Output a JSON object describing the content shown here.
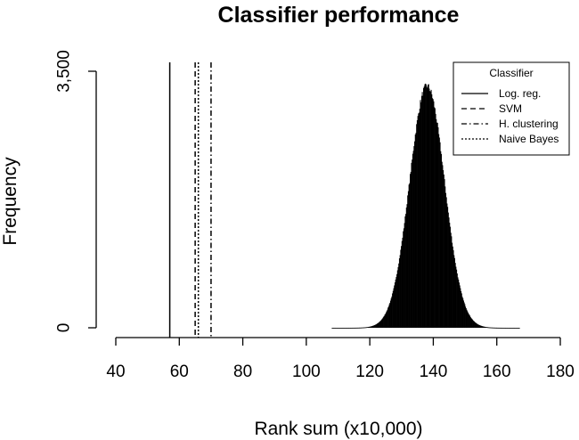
{
  "chart_data": {
    "type": "histogram",
    "title": "Classifier performance",
    "xlabel": "Rank sum (x10,000)",
    "ylabel": "Frequency",
    "xlim": [
      40,
      180
    ],
    "ylim": [
      0,
      3500
    ],
    "x_ticks": [
      {
        "value": 40,
        "label": "40"
      },
      {
        "value": 60,
        "label": "60"
      },
      {
        "value": 80,
        "label": "80"
      },
      {
        "value": 100,
        "label": "100"
      },
      {
        "value": 120,
        "label": "120"
      },
      {
        "value": 140,
        "label": "140"
      },
      {
        "value": 160,
        "label": "160"
      },
      {
        "value": 180,
        "label": "180"
      }
    ],
    "y_ticks": [
      {
        "value": 0,
        "label": "0"
      },
      {
        "value": 3500,
        "label": "3,500"
      }
    ],
    "distribution": {
      "color": "#000000",
      "mean": 138,
      "sd": 5.5,
      "peak": 3300,
      "range": [
        108,
        167
      ]
    },
    "reference_lines": [
      {
        "label": "Log. reg.",
        "x": 57,
        "dash": "solid"
      },
      {
        "label": "SVM",
        "x": 65,
        "dash": "dashed"
      },
      {
        "label": "H. clustering",
        "x": 70,
        "dash": "dashdot"
      },
      {
        "label": "Naive Bayes",
        "x": 66,
        "dash": "dotted"
      }
    ],
    "legend": {
      "title": "Classifier",
      "position": "top-right",
      "entries": [
        {
          "label": "Log. reg.",
          "dash": "solid"
        },
        {
          "label": "SVM",
          "dash": "dashed"
        },
        {
          "label": "H. clustering",
          "dash": "dashdot"
        },
        {
          "label": "Naive Bayes",
          "dash": "dotted"
        }
      ]
    },
    "grid": false
  }
}
